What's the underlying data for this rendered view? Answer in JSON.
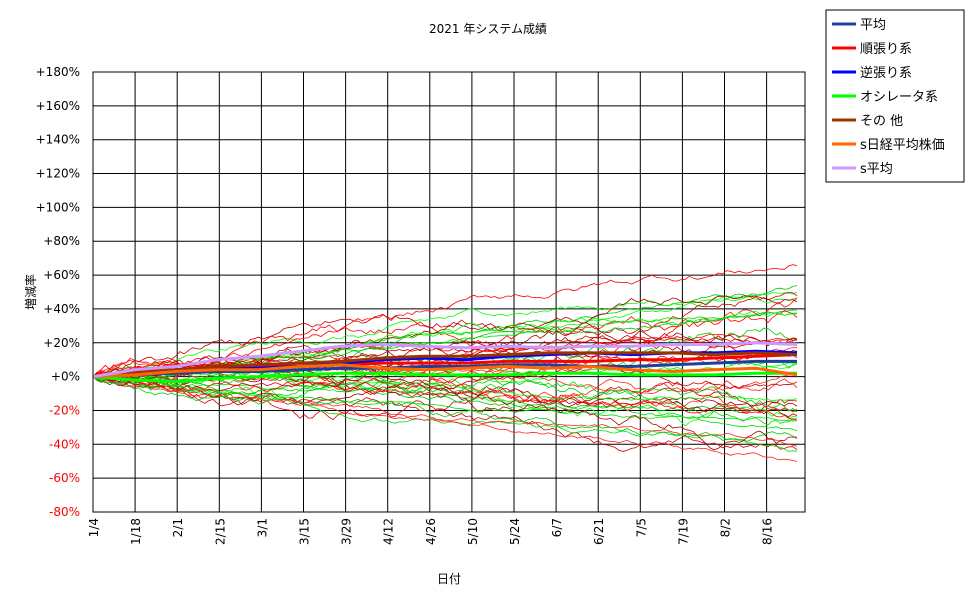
{
  "chart_data": {
    "type": "line",
    "title": "2021 年システム成績",
    "xlabel": "日付",
    "ylabel": "増減率",
    "x_tick_labels": [
      "1/4",
      "1/18",
      "2/1",
      "2/15",
      "3/1",
      "3/15",
      "3/29",
      "4/12",
      "4/26",
      "5/10",
      "5/24",
      "6/7",
      "6/21",
      "7/5",
      "7/19",
      "8/2",
      "8/16"
    ],
    "y_tick_labels": [
      "+180%",
      "+160%",
      "+140%",
      "+120%",
      "+100%",
      "+80%",
      "+60%",
      "+40%",
      "+20%",
      "+0%",
      "-20%",
      "-40%",
      "-60%",
      "-80%"
    ],
    "ylim": [
      -80,
      180
    ],
    "grid": true,
    "legend_position": "top-right",
    "series": [
      {
        "name": "平均",
        "color": "#1f3fa0",
        "values": [
          0,
          1,
          2,
          3,
          3,
          4,
          5,
          5,
          6,
          6,
          7,
          7,
          6,
          6,
          7,
          8,
          9,
          9
        ]
      },
      {
        "name": "順張り系",
        "color": "#ff0000",
        "values": [
          0,
          3,
          4,
          5,
          6,
          6,
          7,
          8,
          8,
          8,
          9,
          9,
          9,
          10,
          10,
          11,
          12,
          13
        ]
      },
      {
        "name": "逆張り系",
        "color": "#0000ff",
        "values": [
          0,
          2,
          3,
          4,
          5,
          6,
          8,
          10,
          11,
          10,
          12,
          13,
          14,
          13,
          14,
          14,
          15,
          14
        ]
      },
      {
        "name": "オシレータ系",
        "color": "#00ff00",
        "values": [
          0,
          -2,
          -3,
          -1,
          0,
          1,
          2,
          2,
          1,
          1,
          1,
          2,
          2,
          1,
          1,
          1,
          2,
          2
        ]
      },
      {
        "name": "その 他",
        "color": "#993300",
        "values": [
          0,
          2,
          4,
          6,
          7,
          8,
          9,
          11,
          12,
          12,
          13,
          14,
          14,
          14,
          14,
          13,
          14,
          13
        ]
      },
      {
        "name": "s日経平均株価",
        "color": "#ff6600",
        "values": [
          0,
          1,
          3,
          4,
          4,
          6,
          7,
          5,
          4,
          5,
          6,
          5,
          6,
          4,
          3,
          4,
          5,
          1
        ]
      },
      {
        "name": "s平均",
        "color": "#cc99ff",
        "values": [
          0,
          4,
          6,
          10,
          12,
          15,
          18,
          19,
          18,
          17,
          18,
          17,
          18,
          18,
          19,
          19,
          20,
          19
        ]
      }
    ]
  }
}
